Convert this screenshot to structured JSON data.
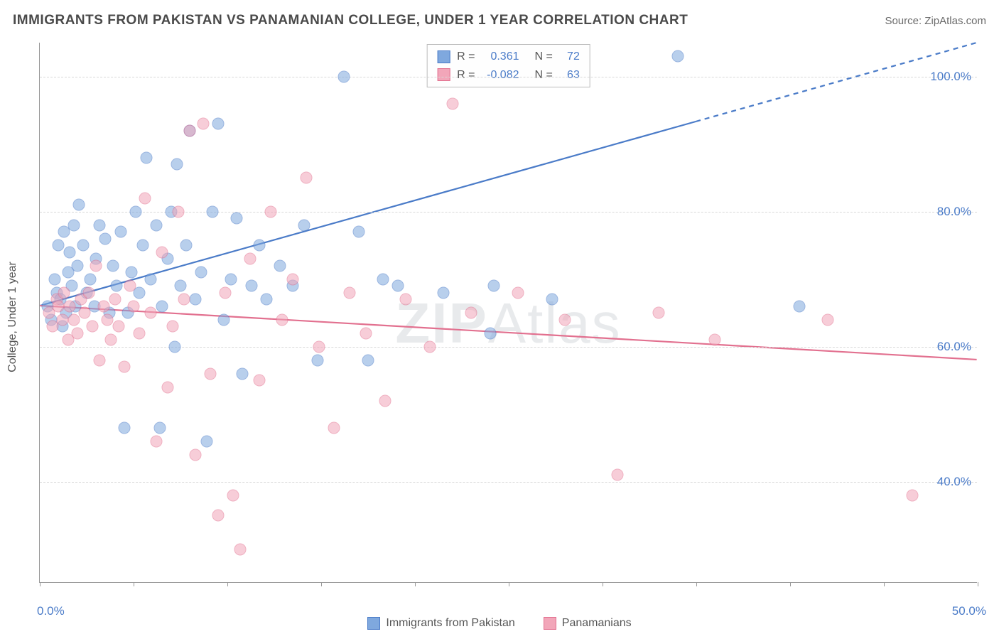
{
  "title": "IMMIGRANTS FROM PAKISTAN VS PANAMANIAN COLLEGE, UNDER 1 YEAR CORRELATION CHART",
  "source": "Source: ZipAtlas.com",
  "watermark": "ZIPAtlas",
  "y_axis_label": "College, Under 1 year",
  "chart": {
    "type": "scatter",
    "background_color": "#ffffff",
    "grid_color": "#d8d8d8",
    "axis_color": "#999999",
    "xlim": [
      0,
      50
    ],
    "ylim": [
      25,
      105
    ],
    "x_ticks": [
      0,
      5,
      10,
      15,
      20,
      25,
      30,
      35,
      40,
      45,
      50
    ],
    "x_tick_labels": {
      "0": "0.0%",
      "50": "50.0%"
    },
    "y_ticks": [
      40,
      60,
      80,
      100
    ],
    "y_tick_labels": {
      "40": "40.0%",
      "60": "60.0%",
      "80": "80.0%",
      "100": "100.0%"
    },
    "tick_label_color": "#4a7bc8",
    "tick_fontsize": 17,
    "title_fontsize": 19,
    "axis_label_fontsize": 16,
    "marker_radius": 8.5,
    "marker_opacity": 0.55,
    "series": [
      {
        "name": "Immigrants from Pakistan",
        "color": "#7fa8de",
        "stroke": "#4a7bc8",
        "r": 0.361,
        "n": 72,
        "trend": {
          "x1": 0,
          "y1": 66,
          "x2": 50,
          "y2": 105,
          "solid_until_x": 35
        },
        "points": [
          [
            0.4,
            66
          ],
          [
            0.6,
            64
          ],
          [
            0.8,
            70
          ],
          [
            0.9,
            68
          ],
          [
            1.0,
            75
          ],
          [
            1.1,
            67
          ],
          [
            1.2,
            63
          ],
          [
            1.3,
            77
          ],
          [
            1.4,
            65
          ],
          [
            1.5,
            71
          ],
          [
            1.6,
            74
          ],
          [
            1.7,
            69
          ],
          [
            1.8,
            78
          ],
          [
            1.9,
            66
          ],
          [
            2.0,
            72
          ],
          [
            2.1,
            81
          ],
          [
            2.3,
            75
          ],
          [
            2.5,
            68
          ],
          [
            2.7,
            70
          ],
          [
            2.9,
            66
          ],
          [
            3.0,
            73
          ],
          [
            3.2,
            78
          ],
          [
            3.5,
            76
          ],
          [
            3.7,
            65
          ],
          [
            3.9,
            72
          ],
          [
            4.1,
            69
          ],
          [
            4.3,
            77
          ],
          [
            4.5,
            48
          ],
          [
            4.7,
            65
          ],
          [
            4.9,
            71
          ],
          [
            5.1,
            80
          ],
          [
            5.3,
            68
          ],
          [
            5.5,
            75
          ],
          [
            5.7,
            88
          ],
          [
            5.9,
            70
          ],
          [
            6.2,
            78
          ],
          [
            6.4,
            48
          ],
          [
            6.5,
            66
          ],
          [
            6.8,
            73
          ],
          [
            7.0,
            80
          ],
          [
            7.2,
            60
          ],
          [
            7.3,
            87
          ],
          [
            7.5,
            69
          ],
          [
            7.8,
            75
          ],
          [
            8.0,
            92
          ],
          [
            8.3,
            67
          ],
          [
            8.6,
            71
          ],
          [
            8.9,
            46
          ],
          [
            9.2,
            80
          ],
          [
            9.5,
            93
          ],
          [
            9.8,
            64
          ],
          [
            10.2,
            70
          ],
          [
            10.5,
            79
          ],
          [
            10.8,
            56
          ],
          [
            11.3,
            69
          ],
          [
            11.7,
            75
          ],
          [
            12.1,
            67
          ],
          [
            12.8,
            72
          ],
          [
            13.5,
            69
          ],
          [
            14.1,
            78
          ],
          [
            14.8,
            58
          ],
          [
            16.2,
            100
          ],
          [
            17.0,
            77
          ],
          [
            17.5,
            58
          ],
          [
            18.3,
            70
          ],
          [
            19.1,
            69
          ],
          [
            21.5,
            68
          ],
          [
            24.0,
            62
          ],
          [
            24.2,
            69
          ],
          [
            27.3,
            67
          ],
          [
            34.0,
            103
          ],
          [
            40.5,
            66
          ]
        ]
      },
      {
        "name": "Panamanians",
        "color": "#f2a6b9",
        "stroke": "#e2708f",
        "r": -0.082,
        "n": 63,
        "trend": {
          "x1": 0,
          "y1": 66,
          "x2": 50,
          "y2": 58,
          "solid_until_x": 50
        },
        "points": [
          [
            0.5,
            65
          ],
          [
            0.7,
            63
          ],
          [
            0.9,
            67
          ],
          [
            1.0,
            66
          ],
          [
            1.2,
            64
          ],
          [
            1.3,
            68
          ],
          [
            1.5,
            61
          ],
          [
            1.6,
            66
          ],
          [
            1.8,
            64
          ],
          [
            2.0,
            62
          ],
          [
            2.2,
            67
          ],
          [
            2.4,
            65
          ],
          [
            2.6,
            68
          ],
          [
            2.8,
            63
          ],
          [
            3.0,
            72
          ],
          [
            3.2,
            58
          ],
          [
            3.4,
            66
          ],
          [
            3.6,
            64
          ],
          [
            3.8,
            61
          ],
          [
            4.0,
            67
          ],
          [
            4.2,
            63
          ],
          [
            4.5,
            57
          ],
          [
            4.8,
            69
          ],
          [
            5.0,
            66
          ],
          [
            5.3,
            62
          ],
          [
            5.6,
            82
          ],
          [
            5.9,
            65
          ],
          [
            6.2,
            46
          ],
          [
            6.5,
            74
          ],
          [
            6.8,
            54
          ],
          [
            7.1,
            63
          ],
          [
            7.4,
            80
          ],
          [
            7.7,
            67
          ],
          [
            8.0,
            92
          ],
          [
            8.3,
            44
          ],
          [
            8.7,
            93
          ],
          [
            9.1,
            56
          ],
          [
            9.5,
            35
          ],
          [
            9.9,
            68
          ],
          [
            10.3,
            38
          ],
          [
            10.7,
            30
          ],
          [
            11.2,
            73
          ],
          [
            11.7,
            55
          ],
          [
            12.3,
            80
          ],
          [
            12.9,
            64
          ],
          [
            13.5,
            70
          ],
          [
            14.2,
            85
          ],
          [
            14.9,
            60
          ],
          [
            15.7,
            48
          ],
          [
            16.5,
            68
          ],
          [
            17.4,
            62
          ],
          [
            18.4,
            52
          ],
          [
            19.5,
            67
          ],
          [
            20.8,
            60
          ],
          [
            22.0,
            96
          ],
          [
            23.0,
            65
          ],
          [
            25.5,
            68
          ],
          [
            28.0,
            64
          ],
          [
            30.8,
            41
          ],
          [
            33.0,
            65
          ],
          [
            36.0,
            61
          ],
          [
            42.0,
            64
          ],
          [
            46.5,
            38
          ]
        ]
      }
    ]
  },
  "legend_labels": {
    "r_label": "R =",
    "n_label": "N ="
  }
}
